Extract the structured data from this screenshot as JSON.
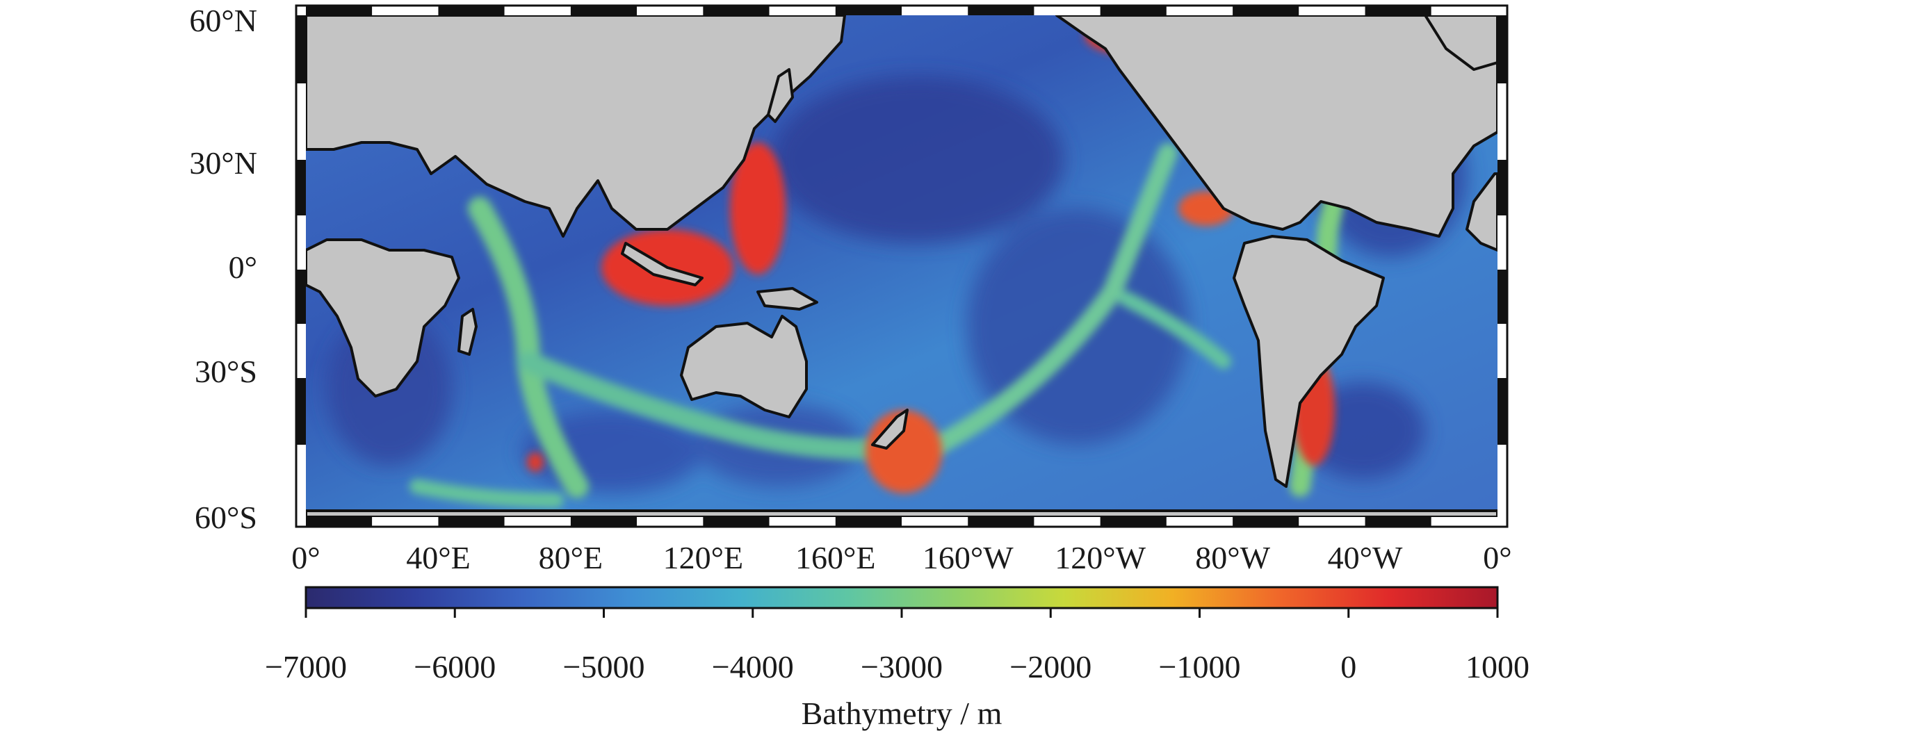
{
  "map": {
    "projection": "Mercator",
    "lat_range": [
      "60°S",
      "60°N"
    ],
    "lon_range": [
      "0°",
      "0°"
    ],
    "lat_ticks": [
      {
        "label": "60°N",
        "lat": 60
      },
      {
        "label": "30°N",
        "lat": 30
      },
      {
        "label": "0°",
        "lat": 0
      },
      {
        "label": "30°S",
        "lat": -30
      },
      {
        "label": "60°S",
        "lat": -60
      }
    ],
    "lon_ticks": [
      {
        "label": "0°",
        "lon": 0
      },
      {
        "label": "40°E",
        "lon": 40
      },
      {
        "label": "80°E",
        "lon": 80
      },
      {
        "label": "120°E",
        "lon": 120
      },
      {
        "label": "160°E",
        "lon": 160
      },
      {
        "label": "160°W",
        "lon": 200
      },
      {
        "label": "120°W",
        "lon": 240
      },
      {
        "label": "80°W",
        "lon": 280
      },
      {
        "label": "40°W",
        "lon": 320
      },
      {
        "label": "0°",
        "lon": 360
      }
    ],
    "land_color": "#c4c4c4",
    "coast_color": "#111111",
    "frame": "alternating black/white graticule border"
  },
  "colorbar": {
    "title": "Bathymetry / m",
    "ticks": [
      "−7000",
      "−6000",
      "−5000",
      "−4000",
      "−3000",
      "−2000",
      "−1000",
      "0",
      "1000"
    ],
    "min": -7000,
    "max": 1000,
    "colors": [
      "#2b2a6e",
      "#2f3f9e",
      "#3a66c4",
      "#3f8fd4",
      "#43b1cc",
      "#5ec6a4",
      "#8fd169",
      "#c8d93b",
      "#f1b024",
      "#f0662a",
      "#e02a2a",
      "#a8182a"
    ]
  }
}
